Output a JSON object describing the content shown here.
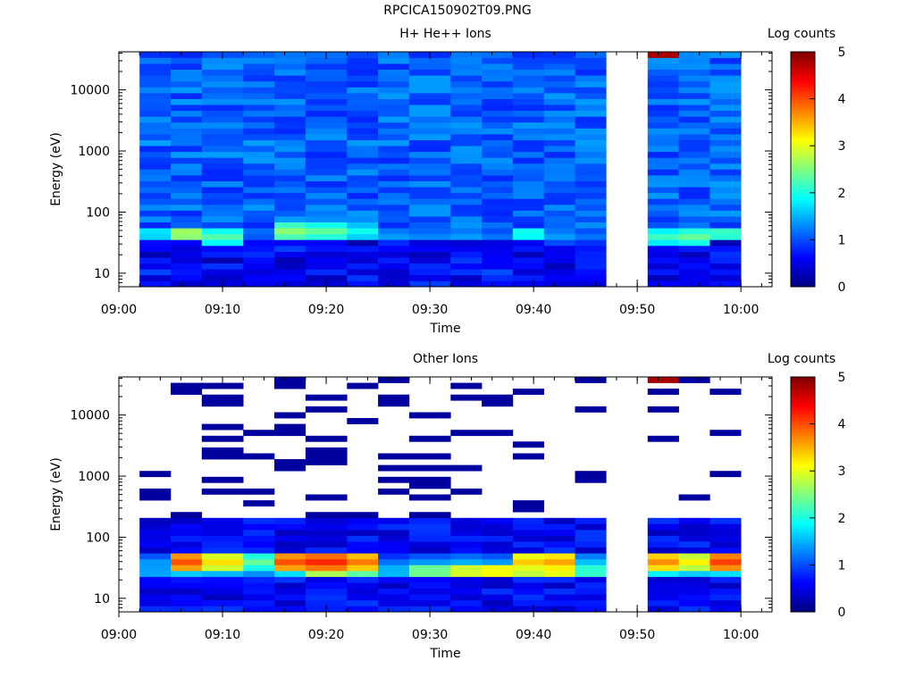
{
  "title": "RPCICA150902T09.PNG",
  "chart_data": [
    {
      "type": "heatmap",
      "title": "H+ He++ Ions",
      "xlabel": "Time",
      "ylabel": "Energy (eV)",
      "yscale": "log",
      "x_ticks": [
        "09:00",
        "09:10",
        "09:20",
        "09:30",
        "09:40",
        "09:50",
        "10:00"
      ],
      "y_ticks": [
        "10",
        "100",
        "1000",
        "10000"
      ],
      "time_range": [
        "09:00",
        "10:03"
      ],
      "energy_range": [
        6,
        42000
      ],
      "colorbar_label": "Log counts",
      "colorbar_ticks": [
        "0",
        "1",
        "2",
        "3",
        "4",
        "5"
      ],
      "colorbar_range": [
        0,
        5
      ],
      "data_gaps": [
        [
          "09:00",
          "09:02"
        ],
        [
          "09:47",
          "09:51"
        ],
        [
          "10:00",
          "10:03"
        ]
      ],
      "columns": [
        {
          "start": "09:02",
          "end": "09:05",
          "peak": [
            {
              "e": 45,
              "v": 1.9
            }
          ]
        },
        {
          "start": "09:05",
          "end": "09:08",
          "peak": [
            {
              "e": 45,
              "v": 2.8
            }
          ]
        },
        {
          "start": "09:08",
          "end": "09:12",
          "peak": [
            {
              "e": 40,
              "v": 2.3
            }
          ]
        },
        {
          "start": "09:12",
          "end": "09:15",
          "peak": [
            {
              "e": 45,
              "v": 1.3
            }
          ]
        },
        {
          "start": "09:15",
          "end": "09:18",
          "peak": [
            {
              "e": 48,
              "v": 2.6
            }
          ]
        },
        {
          "start": "09:18",
          "end": "09:22",
          "peak": [
            {
              "e": 48,
              "v": 2.4
            }
          ]
        },
        {
          "start": "09:22",
          "end": "09:25",
          "peak": [
            {
              "e": 48,
              "v": 2.0
            }
          ]
        },
        {
          "start": "09:25",
          "end": "09:28",
          "peak": [
            {
              "e": 42,
              "v": 1.5
            }
          ]
        },
        {
          "start": "09:28",
          "end": "09:32",
          "peak": [
            {
              "e": 42,
              "v": 1.4
            }
          ]
        },
        {
          "start": "09:32",
          "end": "09:35",
          "peak": [
            {
              "e": 42,
              "v": 1.5
            }
          ]
        },
        {
          "start": "09:35",
          "end": "09:38",
          "peak": [
            {
              "e": 42,
              "v": 1.3
            }
          ]
        },
        {
          "start": "09:38",
          "end": "09:41",
          "peak": [
            {
              "e": 45,
              "v": 2.1
            }
          ]
        },
        {
          "start": "09:41",
          "end": "09:44",
          "peak": [
            {
              "e": 42,
              "v": 1.5
            }
          ]
        },
        {
          "start": "09:44",
          "end": "09:47",
          "peak": [
            {
              "e": 42,
              "v": 1.3
            }
          ]
        },
        {
          "start": "09:51",
          "end": "09:54",
          "peak": [
            {
              "e": 40,
              "v": 2.2
            }
          ],
          "top_band": 4.8
        },
        {
          "start": "09:54",
          "end": "09:57",
          "peak": [
            {
              "e": 40,
              "v": 2.4
            }
          ]
        },
        {
          "start": "09:57",
          "end": "10:00",
          "peak": [
            {
              "e": 45,
              "v": 2.3
            }
          ]
        }
      ]
    },
    {
      "type": "heatmap",
      "title": "Other Ions",
      "xlabel": "Time",
      "ylabel": "Energy (eV)",
      "yscale": "log",
      "x_ticks": [
        "09:00",
        "09:10",
        "09:20",
        "09:30",
        "09:40",
        "09:50",
        "10:00"
      ],
      "y_ticks": [
        "10",
        "100",
        "1000",
        "10000"
      ],
      "time_range": [
        "09:00",
        "10:03"
      ],
      "energy_range": [
        6,
        42000
      ],
      "colorbar_label": "Log counts",
      "colorbar_ticks": [
        "0",
        "1",
        "2",
        "3",
        "4",
        "5"
      ],
      "colorbar_range": [
        0,
        5
      ],
      "data_gaps": [
        [
          "09:00",
          "09:02"
        ],
        [
          "09:47",
          "09:51"
        ],
        [
          "10:00",
          "10:03"
        ]
      ],
      "columns": [
        {
          "start": "09:02",
          "end": "09:05",
          "peak": [
            {
              "e": 40,
              "v": 1.4
            },
            {
              "e": 28,
              "v": 1.6
            }
          ]
        },
        {
          "start": "09:05",
          "end": "09:08",
          "peak": [
            {
              "e": 40,
              "v": 4.0
            },
            {
              "e": 28,
              "v": 1.8
            }
          ]
        },
        {
          "start": "09:08",
          "end": "09:12",
          "peak": [
            {
              "e": 40,
              "v": 3.3
            },
            {
              "e": 28,
              "v": 1.7
            }
          ]
        },
        {
          "start": "09:12",
          "end": "09:15",
          "peak": [
            {
              "e": 40,
              "v": 2.4
            },
            {
              "e": 28,
              "v": 1.5
            }
          ]
        },
        {
          "start": "09:15",
          "end": "09:18",
          "peak": [
            {
              "e": 40,
              "v": 4.0
            },
            {
              "e": 28,
              "v": 1.9
            }
          ]
        },
        {
          "start": "09:18",
          "end": "09:22",
          "peak": [
            {
              "e": 40,
              "v": 4.2
            },
            {
              "e": 28,
              "v": 2.9
            }
          ]
        },
        {
          "start": "09:22",
          "end": "09:25",
          "peak": [
            {
              "e": 40,
              "v": 3.8
            },
            {
              "e": 28,
              "v": 2.5
            }
          ]
        },
        {
          "start": "09:25",
          "end": "09:28",
          "peak": [
            {
              "e": 40,
              "v": 1.2
            },
            {
              "e": 28,
              "v": 1.7
            }
          ]
        },
        {
          "start": "09:28",
          "end": "09:32",
          "peak": [
            {
              "e": 40,
              "v": 1.4
            },
            {
              "e": 28,
              "v": 2.6
            }
          ]
        },
        {
          "start": "09:32",
          "end": "09:35",
          "peak": [
            {
              "e": 40,
              "v": 1.5
            },
            {
              "e": 28,
              "v": 3.1
            }
          ]
        },
        {
          "start": "09:35",
          "end": "09:38",
          "peak": [
            {
              "e": 40,
              "v": 1.4
            },
            {
              "e": 28,
              "v": 3.3
            }
          ]
        },
        {
          "start": "09:38",
          "end": "09:41",
          "peak": [
            {
              "e": 40,
              "v": 3.4
            },
            {
              "e": 28,
              "v": 3.0
            }
          ]
        },
        {
          "start": "09:41",
          "end": "09:44",
          "peak": [
            {
              "e": 40,
              "v": 3.6
            },
            {
              "e": 28,
              "v": 3.2
            }
          ]
        },
        {
          "start": "09:44",
          "end": "09:47",
          "peak": [
            {
              "e": 40,
              "v": 1.6
            },
            {
              "e": 28,
              "v": 2.3
            }
          ]
        },
        {
          "start": "09:51",
          "end": "09:54",
          "peak": [
            {
              "e": 40,
              "v": 3.7
            },
            {
              "e": 28,
              "v": 2.0
            }
          ],
          "top_band": 4.8
        },
        {
          "start": "09:54",
          "end": "09:57",
          "peak": [
            {
              "e": 40,
              "v": 3.2
            },
            {
              "e": 28,
              "v": 1.8
            }
          ]
        },
        {
          "start": "09:57",
          "end": "10:00",
          "peak": [
            {
              "e": 40,
              "v": 4.1
            },
            {
              "e": 28,
              "v": 1.9
            }
          ]
        }
      ]
    }
  ]
}
